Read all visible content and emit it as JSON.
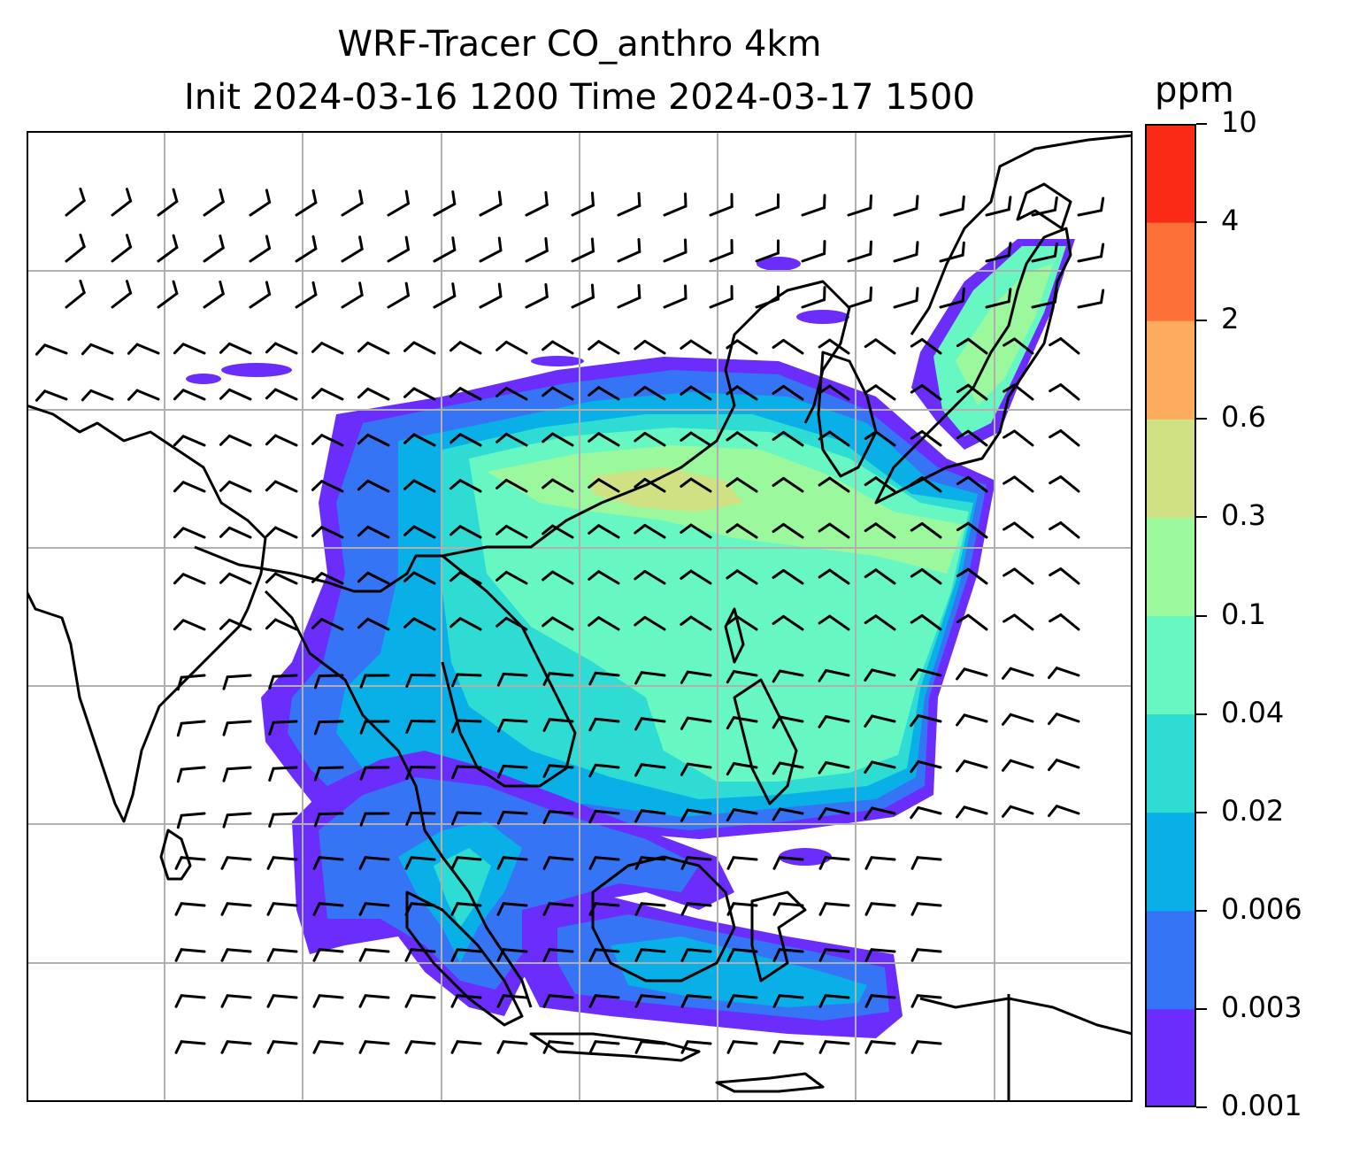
{
  "title": {
    "line1": "WRF-Tracer CO_anthro 4km",
    "line2": "Init 2024-03-16 1200 Time 2024-03-17 1500"
  },
  "colorbar": {
    "unit": "ppm",
    "levels": [
      "0.001",
      "0.003",
      "0.006",
      "0.02",
      "0.04",
      "0.1",
      "0.3",
      "0.6",
      "2",
      "4",
      "10"
    ],
    "colors": [
      "#6a2dfb",
      "#3474f5",
      "#08b0e7",
      "#2fdcd3",
      "#66f7c3",
      "#9bf89c",
      "#d0e184",
      "#fdac5d",
      "#fd7037",
      "#fb2a16"
    ]
  },
  "map": {
    "frame_color": "#000000",
    "grid_color": "#b0b0b0",
    "coastline_color": "#000000",
    "barb_color": "#000000",
    "field": "CO_anthro tracer concentration",
    "overlay": "wind barbs"
  }
}
